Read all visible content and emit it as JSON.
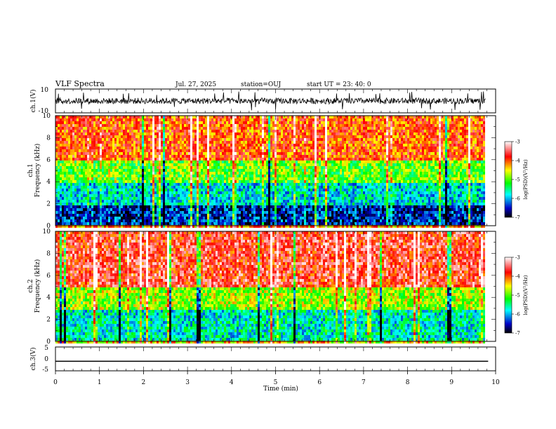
{
  "header": {
    "title": "VLF Spectra",
    "date": "Jul. 27, 2025",
    "station": "station=OUJ",
    "start_ut": "start UT =  23: 40: 0"
  },
  "chart_data": [
    {
      "type": "line",
      "panel": "ch1-waveform",
      "ylabel": "ch.1(V)",
      "ylim": [
        -10,
        10
      ],
      "yticks": [
        "10",
        "-10"
      ],
      "xlim": [
        0,
        10
      ],
      "description_values": {
        "baseline": 0,
        "typical_range": [
          -3,
          3
        ],
        "spike_range": [
          -8,
          7
        ]
      }
    },
    {
      "type": "heatmap",
      "panel": "ch1-spectrogram",
      "ylabel_line1": "ch.1",
      "ylabel_line2": "Frequency (kHz)",
      "ylim": [
        0,
        10
      ],
      "yticks": [
        "0",
        "2",
        "4",
        "6",
        "8",
        "10"
      ],
      "xlim": [
        0,
        9.83
      ],
      "colorbar": {
        "label": "log(PSD)(V²/Hz)",
        "range": [
          -7,
          -3
        ],
        "ticks": [
          "-3",
          "-4",
          "-5",
          "-6",
          "-7"
        ]
      },
      "band_profile": [
        {
          "freq_khz": [
            0,
            0.3
          ],
          "log_psd": -4.2
        },
        {
          "freq_khz": [
            0.3,
            2.0
          ],
          "log_psd": -6.5
        },
        {
          "freq_khz": [
            2.0,
            4.0
          ],
          "log_psd": -5.8
        },
        {
          "freq_khz": [
            4.0,
            6.0
          ],
          "log_psd": -5.0
        },
        {
          "freq_khz": [
            6.0,
            10.0
          ],
          "log_psd": -4.0
        }
      ]
    },
    {
      "type": "heatmap",
      "panel": "ch2-spectrogram",
      "ylabel_line1": "ch.2",
      "ylabel_line2": "Frequency (kHz)",
      "ylim": [
        0,
        10
      ],
      "yticks": [
        "0",
        "2",
        "4",
        "6",
        "8",
        "10"
      ],
      "xlim": [
        0,
        9.83
      ],
      "colorbar": {
        "label": "log(PSD)(V²/Hz)",
        "range": [
          -7,
          -3
        ],
        "ticks": [
          "-3",
          "-4",
          "-5",
          "-6",
          "-7"
        ]
      },
      "band_profile": [
        {
          "freq_khz": [
            0,
            0.3
          ],
          "log_psd": -4.5
        },
        {
          "freq_khz": [
            0.3,
            3.0
          ],
          "log_psd": -5.7
        },
        {
          "freq_khz": [
            3.0,
            5.0
          ],
          "log_psd": -4.8
        },
        {
          "freq_khz": [
            5.0,
            10.0
          ],
          "log_psd": -3.7
        }
      ]
    },
    {
      "type": "line",
      "panel": "ch3-waveform",
      "ylabel": "ch.3(V)",
      "ylim": [
        -5,
        5
      ],
      "yticks": [
        "5",
        "0",
        "-5"
      ],
      "xlim": [
        0,
        10
      ],
      "series": [
        {
          "x": [
            0,
            9.83
          ],
          "y": [
            -1.0,
            -1.0
          ]
        }
      ]
    }
  ],
  "xaxis": {
    "label": "Time (min)",
    "ticks": [
      "0",
      "1",
      "2",
      "3",
      "4",
      "5",
      "6",
      "7",
      "8",
      "9",
      "10"
    ]
  },
  "colors": {
    "scale": [
      "#000000",
      "#0000c8",
      "#00ffff",
      "#00ff00",
      "#ffff00",
      "#ff0000",
      "#ffffff"
    ]
  }
}
